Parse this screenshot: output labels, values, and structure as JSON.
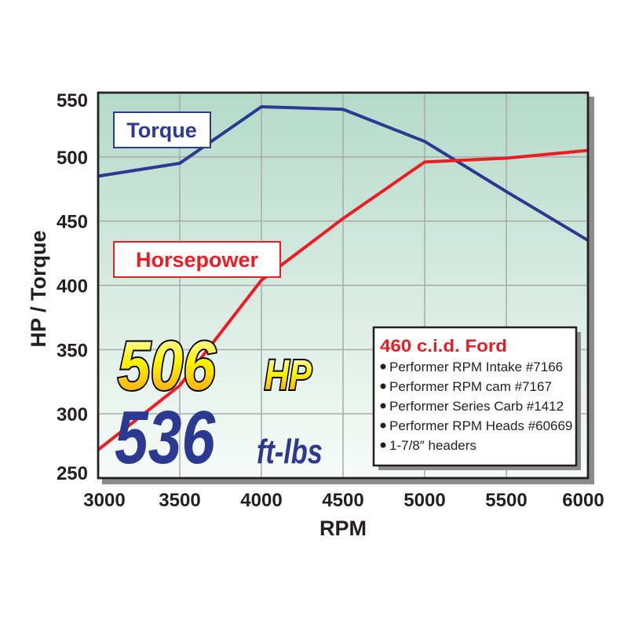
{
  "chart_data": {
    "type": "line",
    "xlabel": "RPM",
    "ylabel": "HP / Torque",
    "xlim": [
      3000,
      6000
    ],
    "ylim": [
      250,
      550
    ],
    "x_ticks": [
      "3000",
      "3500",
      "4000",
      "4500",
      "5000",
      "5500",
      "6000"
    ],
    "y_ticks": [
      "550",
      "500",
      "450",
      "400",
      "350",
      "300",
      "250"
    ],
    "grid": true,
    "x": [
      3000,
      3500,
      4000,
      4500,
      5000,
      5500,
      6000
    ],
    "series": [
      {
        "name": "Torque",
        "color": "#2b3990",
        "values": [
          485,
          495,
          539,
          537,
          512,
          473,
          435
        ]
      },
      {
        "name": "Horsepower",
        "color": "#ed1c24",
        "values": [
          272,
          322,
          404,
          452,
          496,
          499,
          505
        ]
      }
    ],
    "annotations": {
      "hp_value": "506",
      "hp_unit": "HP",
      "torque_value": "536",
      "torque_unit": "ft-lbs"
    },
    "info_box": {
      "title": "460 c.i.d. Ford",
      "items": [
        "Performer RPM Intake #7166",
        "Performer RPM cam #7167",
        "Performer Series Carb #1412",
        "Performer RPM Heads #60669",
        "1-7/8″ headers"
      ]
    },
    "colors": {
      "background_top": "#b5dac9",
      "background_bottom": "#f7fbf9",
      "grid": "#a7aaa9"
    }
  }
}
